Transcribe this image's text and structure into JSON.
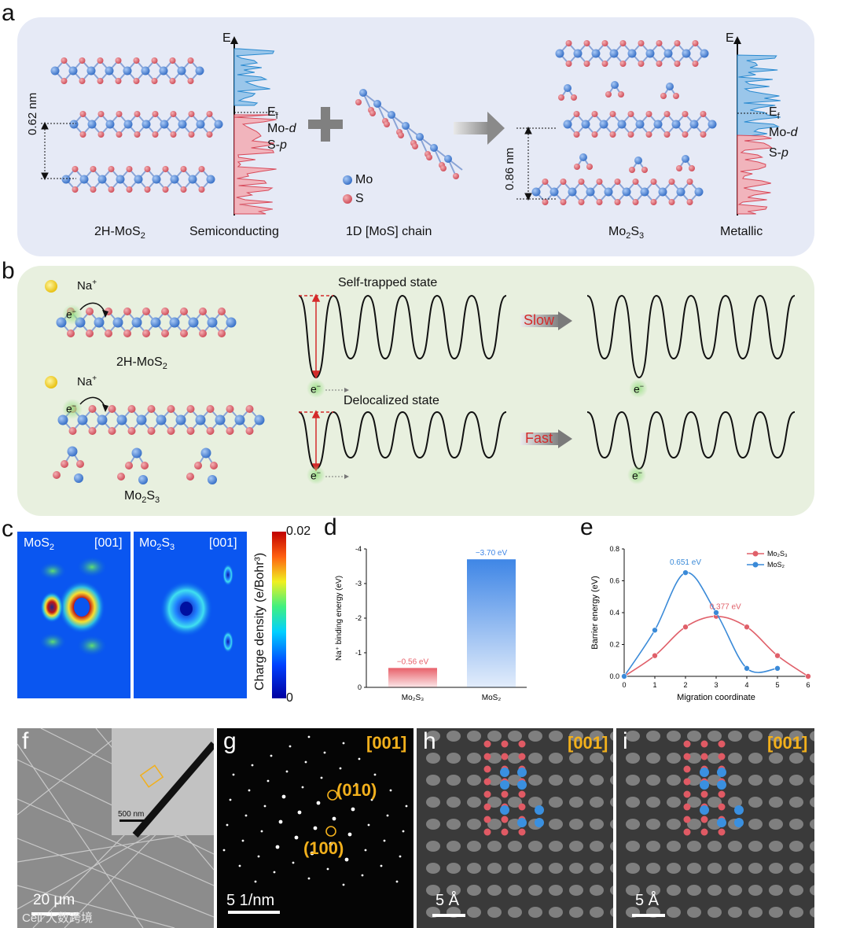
{
  "panels": {
    "a": "a",
    "b": "b",
    "c": "c",
    "d": "d",
    "e": "e",
    "f": "f",
    "g": "g",
    "h": "h",
    "i": "i"
  },
  "panel_a": {
    "label_mos2": "2H-MoS",
    "label_mos2_sub": "2",
    "label_semi": "Semiconducting",
    "label_chain": "1D [MoS] chain",
    "label_mo2s3": "Mo",
    "label_mo2s3_sub1": "2",
    "label_mo2s3_s": "S",
    "label_mo2s3_sub2": "3",
    "label_metallic": "Metallic",
    "spacing_left": "0.62 nm",
    "spacing_right": "0.86 nm",
    "e_axis": "E",
    "ef": "E",
    "ef_sub": "f",
    "mod": "Mo-",
    "mod_it": "d",
    "sp": "S-",
    "sp_it": "p",
    "legend_mo": "Mo",
    "legend_s": "S"
  },
  "panel_b": {
    "na1": "Na",
    "na_sup": "+",
    "na2": "Na",
    "e_label": "e",
    "e_sup": "−",
    "top_caption": "Self-trapped state",
    "bottom_caption": "Delocalized state",
    "slow": "Slow",
    "fast": "Fast",
    "mos2_label": "2H-MoS",
    "mos2_sub": "2",
    "mo2s3_label": "Mo",
    "mo2s3_sub1": "2",
    "mo2s3_s": "S",
    "mo2s3_sub2": "3"
  },
  "panel_c": {
    "left_title": "MoS",
    "left_sub": "2",
    "left_zone": "[001]",
    "right_title": "Mo",
    "right_sub1": "2",
    "right_s": "S",
    "right_sub2": "3",
    "right_zone": "[001]",
    "cb_max": "0.02",
    "cb_min": "0",
    "cb_label": "Charge density (e/Bohr³)"
  },
  "panel_f": {
    "scale": "20 μm",
    "inset_scale": "500 nm"
  },
  "panel_g": {
    "zone": "[001]",
    "spot1": "(010)",
    "spot2": "(100)",
    "scale": "5 1/nm"
  },
  "panel_h": {
    "zone": "[001]",
    "scale": "5 Å"
  },
  "panel_i": {
    "zone": "[001]",
    "scale": "5 Å"
  },
  "watermark": "Cell 大数跨境",
  "colors": {
    "mo": "#4a86d8",
    "s": "#e0606a",
    "orange": "#f2b01c",
    "slow_fast": "#d42a2a"
  },
  "chart_data": [
    {
      "id": "d",
      "type": "bar",
      "categories": [
        "Mo₂S₃",
        "MoS₂"
      ],
      "values": [
        -0.56,
        -3.7
      ],
      "data_labels": [
        "−0.56 eV",
        "−3.70 eV"
      ],
      "ylabel": "Na⁺ binding energy (eV)",
      "ylim": [
        0,
        -4
      ],
      "yticks": [
        "0",
        "-1",
        "-2",
        "-3",
        "-4"
      ],
      "colors": [
        "#e8606a",
        "#3f86e6"
      ]
    },
    {
      "id": "e",
      "type": "line",
      "xlabel": "Migration coordinate",
      "ylabel": "Barrier energy (eV)",
      "xlim": [
        0,
        6
      ],
      "ylim": [
        0,
        0.8
      ],
      "xticks": [
        "0",
        "1",
        "2",
        "3",
        "4",
        "5",
        "6"
      ],
      "yticks": [
        "0.0",
        "0.2",
        "0.4",
        "0.6",
        "0.8"
      ],
      "series": [
        {
          "name": "Mo₂S₃",
          "color": "#e0606a",
          "x": [
            0,
            1,
            2,
            3,
            4,
            5,
            6
          ],
          "y": [
            0.0,
            0.13,
            0.31,
            0.377,
            0.31,
            0.13,
            0.0
          ]
        },
        {
          "name": "MoS₂",
          "color": "#3a8ad8",
          "x": [
            0,
            1,
            2,
            3,
            4,
            5
          ],
          "y": [
            0.0,
            0.29,
            0.651,
            0.4,
            0.05,
            0.05
          ]
        }
      ],
      "annotations": [
        "0.651 eV",
        "0.377 eV"
      ],
      "legend": "top-right"
    }
  ]
}
